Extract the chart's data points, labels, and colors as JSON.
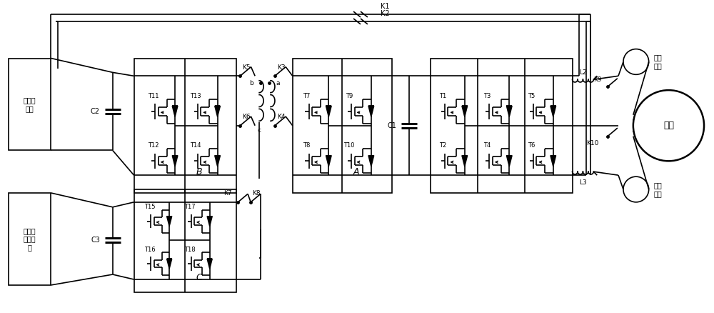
{
  "bg_color": "#ffffff",
  "lc": "#000000",
  "lw": 1.2,
  "fig_w": 10.0,
  "fig_h": 4.38,
  "dpi": 100,
  "labels": {
    "battery1": "动力电\n池组",
    "battery2": "车载低\n压蓄电\n池",
    "motor": "电机",
    "charge": "充电\n接口",
    "output": "输出\n接口",
    "C2": "C2",
    "C3": "C3",
    "C1": "C1",
    "L2": "L2",
    "L3": "L3",
    "B": "B",
    "A": "A",
    "C": "C",
    "K1": "K1",
    "K2": "K2",
    "K3": "K3",
    "K4": "K4",
    "K5": "K5",
    "K6": "K6",
    "K7": "K7",
    "K8": "K8",
    "K9": "K9",
    "K10": "K10",
    "a": "a",
    "b": "b",
    "c": "c",
    "T1": "T1",
    "T2": "T2",
    "T3": "T3",
    "T4": "T4",
    "T5": "T5",
    "T6": "T6",
    "T7": "T7",
    "T8": "T8",
    "T9": "T9",
    "T10": "T10",
    "T11": "T11",
    "T12": "T12",
    "T13": "T13",
    "T14": "T14",
    "T15": "T15",
    "T16": "T16",
    "T17": "T17",
    "T18": "T18"
  }
}
